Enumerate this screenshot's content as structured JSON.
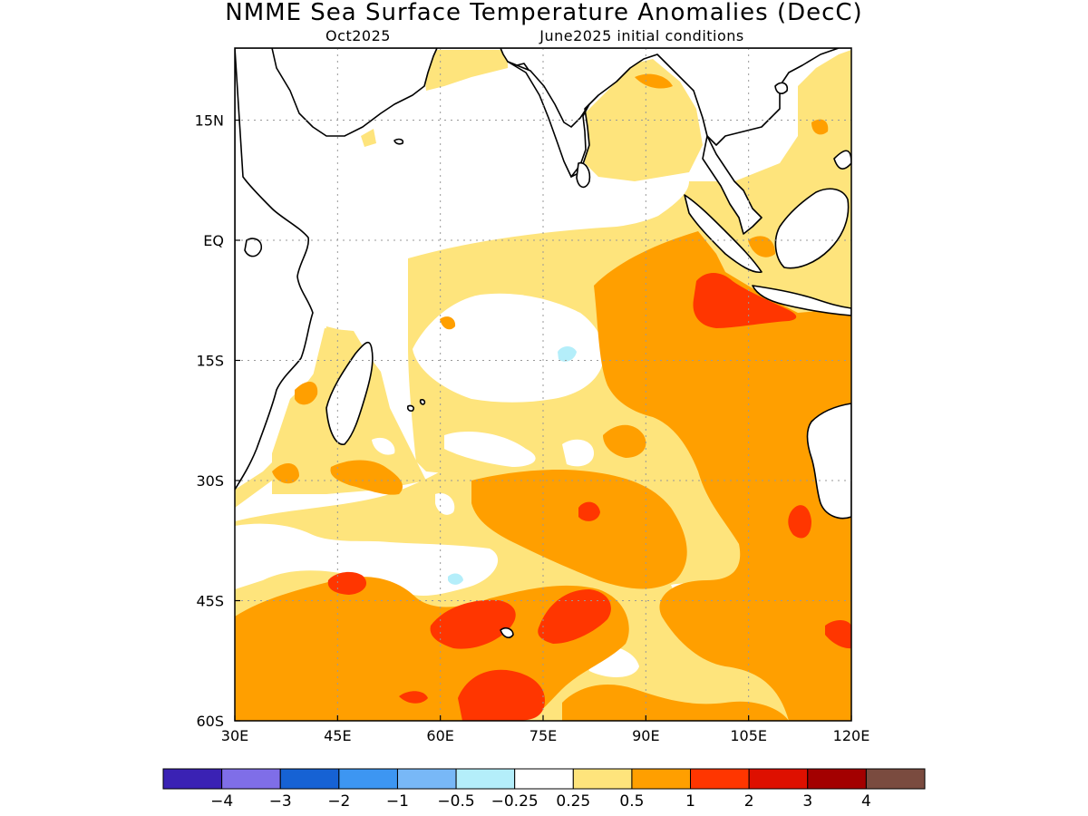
{
  "title": "NMME Sea Surface Temperature Anomalies (DecC)",
  "subtitle_left": "Oct2025",
  "subtitle_right": "June2025 initial conditions",
  "map": {
    "lon_range": [
      30,
      120
    ],
    "lat_range": [
      -60,
      24
    ],
    "lon_ticks": [
      {
        "value": 30,
        "label": "30E"
      },
      {
        "value": 45,
        "label": "45E"
      },
      {
        "value": 60,
        "label": "60E"
      },
      {
        "value": 75,
        "label": "75E"
      },
      {
        "value": 90,
        "label": "90E"
      },
      {
        "value": 105,
        "label": "105E"
      },
      {
        "value": 120,
        "label": "120E"
      }
    ],
    "lat_ticks": [
      {
        "value": 15,
        "label": "15N"
      },
      {
        "value": 0,
        "label": "EQ"
      },
      {
        "value": -15,
        "label": "15S"
      },
      {
        "value": -30,
        "label": "30S"
      },
      {
        "value": -45,
        "label": "45S"
      },
      {
        "value": -60,
        "label": "60S"
      }
    ],
    "grid": "dotted",
    "land_color": "#ffffff",
    "coast_color": "#000000"
  },
  "colorbar": {
    "colors": [
      "#3a22b4",
      "#7f6ee8",
      "#1662d4",
      "#3d96f2",
      "#78b8f7",
      "#b4eefa",
      "#ffffff",
      "#fee47c",
      "#ff9f00",
      "#ff3600",
      "#de1000",
      "#a30000",
      "#7a4b3f"
    ],
    "labels": [
      "−4",
      "−3",
      "−2",
      "−1",
      "−0.5",
      "−0.25",
      "0.25",
      "0.5",
      "1",
      "2",
      "3",
      "4"
    ]
  },
  "anomaly_colors": {
    "band_025_05": "#fee47c",
    "band_05_1": "#ff9f00",
    "band_1_2": "#ff3600",
    "band_m025_m05": "#b4eefa"
  }
}
